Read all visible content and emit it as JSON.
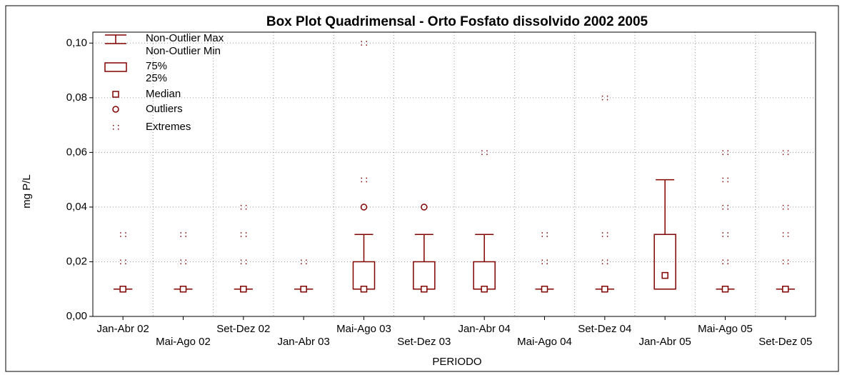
{
  "chart_data": {
    "type": "box",
    "title": "Box Plot Quadrimensal - Orto Fosfato dissolvido 2002 2005",
    "x_label": "PERIODO",
    "y_label": "mg P/L",
    "categories": [
      "Jan-Abr 02",
      "Mai-Ago 02",
      "Set-Dez 02",
      "Jan-Abr 03",
      "Mai-Ago 03",
      "Set-Dez 03",
      "Jan-Abr 04",
      "Mai-Ago 04",
      "Set-Dez 04",
      "Jan-Abr 05",
      "Mai-Ago 05",
      "Set-Dez 05"
    ],
    "boxes": [
      {
        "min": 0.01,
        "q1": 0.01,
        "median": 0.01,
        "q3": 0.01,
        "max": 0.01,
        "outliers": [],
        "extremes": [
          0.02,
          0.03
        ]
      },
      {
        "min": 0.01,
        "q1": 0.01,
        "median": 0.01,
        "q3": 0.01,
        "max": 0.01,
        "outliers": [],
        "extremes": [
          0.02,
          0.03
        ]
      },
      {
        "min": 0.01,
        "q1": 0.01,
        "median": 0.01,
        "q3": 0.01,
        "max": 0.01,
        "outliers": [],
        "extremes": [
          0.02,
          0.03,
          0.04
        ]
      },
      {
        "min": 0.01,
        "q1": 0.01,
        "median": 0.01,
        "q3": 0.01,
        "max": 0.01,
        "outliers": [],
        "extremes": [
          0.02
        ]
      },
      {
        "min": 0.01,
        "q1": 0.01,
        "median": 0.01,
        "q3": 0.02,
        "max": 0.03,
        "outliers": [
          0.04
        ],
        "extremes": [
          0.05,
          0.1
        ]
      },
      {
        "min": 0.01,
        "q1": 0.01,
        "median": 0.01,
        "q3": 0.02,
        "max": 0.03,
        "outliers": [
          0.04
        ],
        "extremes": []
      },
      {
        "min": 0.01,
        "q1": 0.01,
        "median": 0.01,
        "q3": 0.02,
        "max": 0.03,
        "outliers": [],
        "extremes": [
          0.06
        ]
      },
      {
        "min": 0.01,
        "q1": 0.01,
        "median": 0.01,
        "q3": 0.01,
        "max": 0.01,
        "outliers": [],
        "extremes": [
          0.02,
          0.03
        ]
      },
      {
        "min": 0.01,
        "q1": 0.01,
        "median": 0.01,
        "q3": 0.01,
        "max": 0.01,
        "outliers": [],
        "extremes": [
          0.02,
          0.03,
          0.08
        ]
      },
      {
        "min": 0.01,
        "q1": 0.01,
        "median": 0.015,
        "q3": 0.03,
        "max": 0.05,
        "outliers": [],
        "extremes": []
      },
      {
        "min": 0.01,
        "q1": 0.01,
        "median": 0.01,
        "q3": 0.01,
        "max": 0.01,
        "outliers": [],
        "extremes": [
          0.02,
          0.03,
          0.04,
          0.05,
          0.06
        ]
      },
      {
        "min": 0.01,
        "q1": 0.01,
        "median": 0.01,
        "q3": 0.01,
        "max": 0.01,
        "outliers": [],
        "extremes": [
          0.02,
          0.03,
          0.04,
          0.06
        ]
      }
    ],
    "color": "#800000",
    "ylim": [
      0,
      0.104
    ],
    "yticks": [
      {
        "value": 0,
        "label": "0,00"
      },
      {
        "value": 0.02,
        "label": "0,02"
      },
      {
        "value": 0.04,
        "label": "0,04"
      },
      {
        "value": 0.06,
        "label": "0,06"
      },
      {
        "value": 0.08,
        "label": "0,08"
      },
      {
        "value": 0.1,
        "label": "0,10"
      }
    ],
    "grid": true,
    "legend": [
      "Non-Outlier Max",
      "Non-Outlier Min",
      "75%",
      "25%",
      "Median",
      "Outliers",
      "Extremes"
    ]
  }
}
